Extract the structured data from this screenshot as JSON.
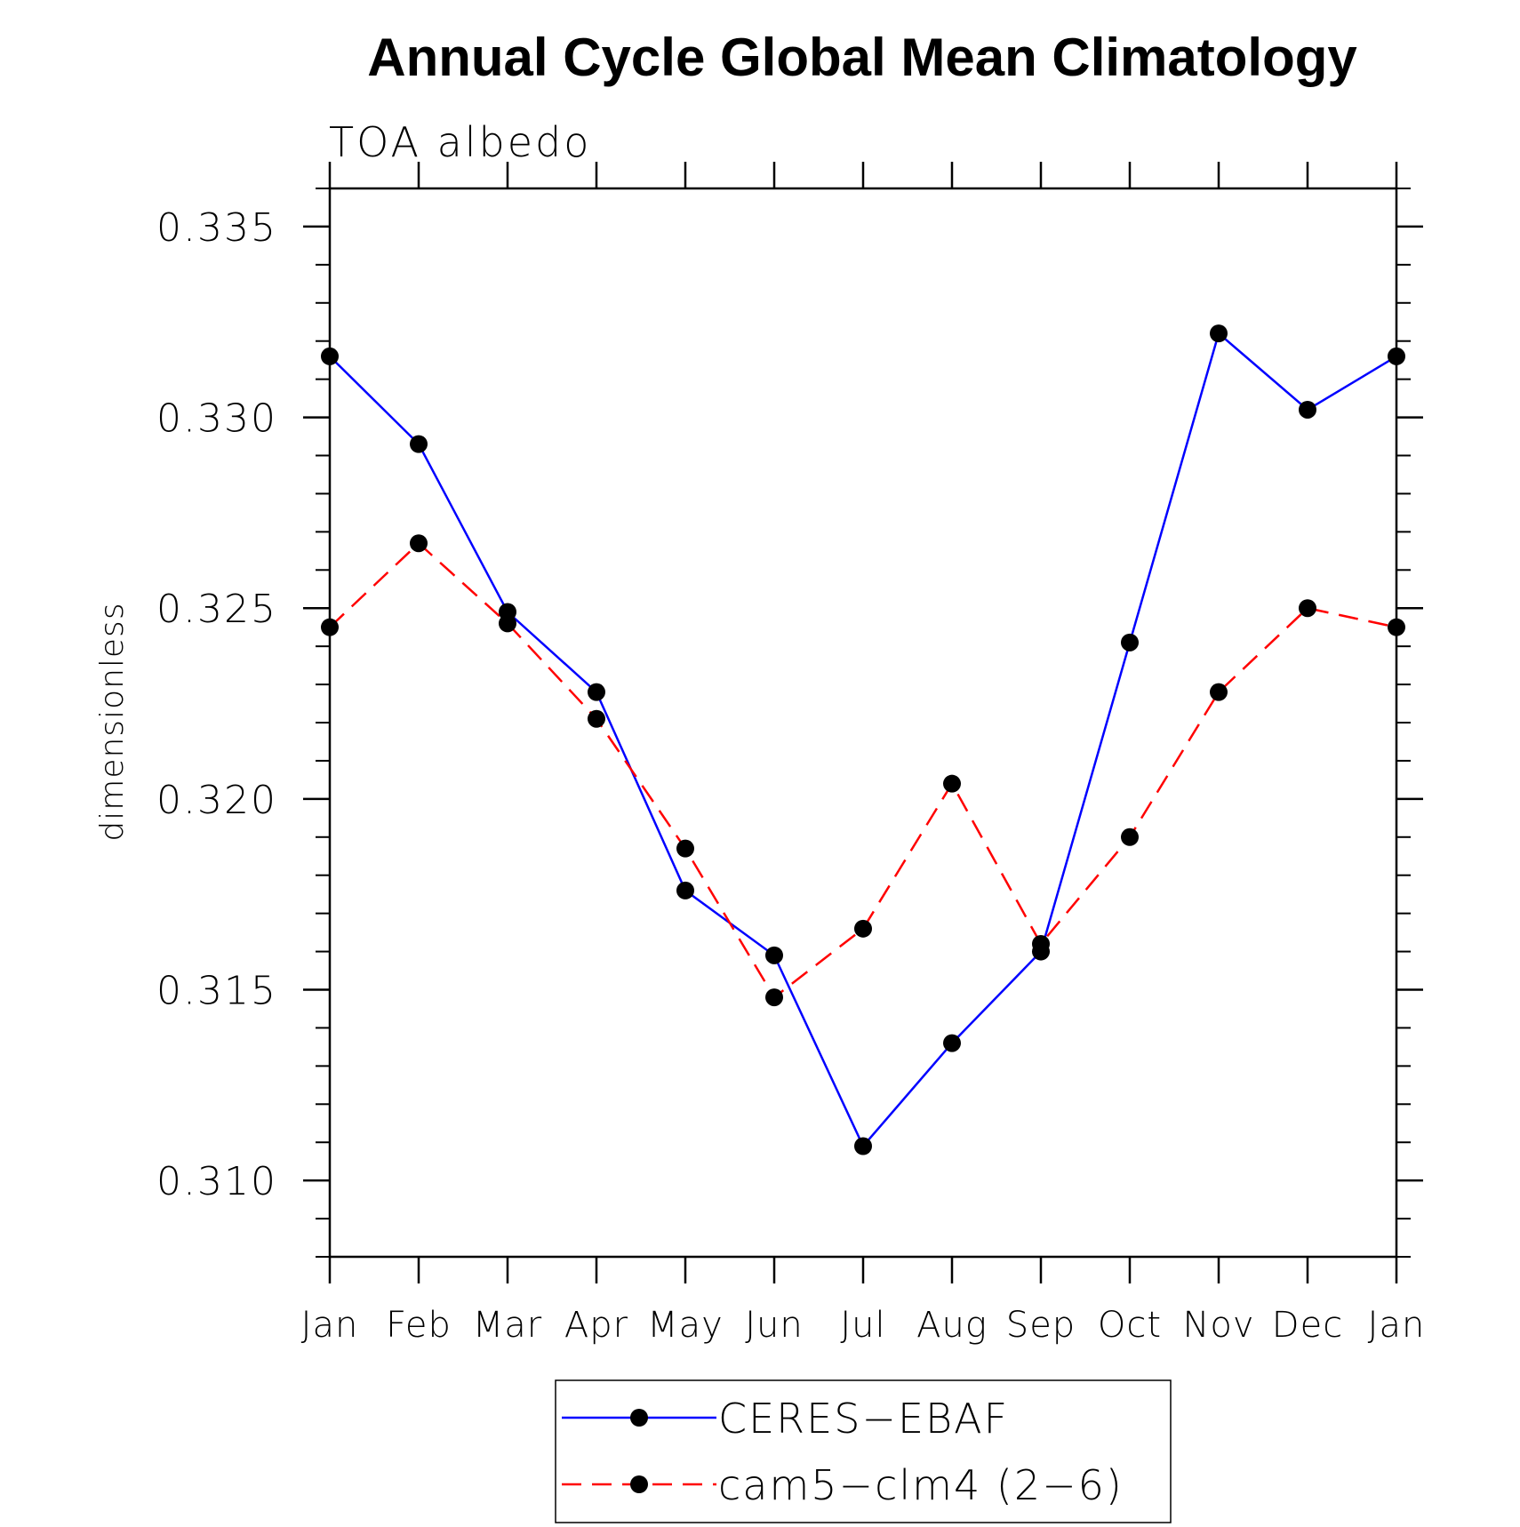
{
  "chart_data": {
    "type": "line",
    "title": "Annual Cycle Global Mean Climatology",
    "subtitle": "TOA albedo",
    "xlabel": "",
    "ylabel": "dimensionless",
    "categories": [
      "Jan",
      "Feb",
      "Mar",
      "Apr",
      "May",
      "Jun",
      "Jul",
      "Aug",
      "Sep",
      "Oct",
      "Nov",
      "Dec",
      "Jan"
    ],
    "ylim": [
      0.308,
      0.336
    ],
    "y_major_ticks": [
      0.31,
      0.315,
      0.32,
      0.325,
      0.33,
      0.335
    ],
    "y_tick_labels": [
      "0.310",
      "0.315",
      "0.320",
      "0.325",
      "0.330",
      "0.335"
    ],
    "y_minor_step": 0.001,
    "grid": false,
    "legend_position": "bottom-center",
    "series": [
      {
        "name": "CERES−EBAF",
        "color": "#0000ff",
        "line_style": "solid",
        "marker_color": "#000000",
        "values": [
          0.3316,
          0.3293,
          0.3249,
          0.3228,
          0.3176,
          0.3159,
          0.3109,
          0.3136,
          0.316,
          0.3241,
          0.3322,
          0.3302,
          0.3316
        ]
      },
      {
        "name": "cam5−clm4 (2−6)",
        "color": "#ff0000",
        "line_style": "dashed",
        "marker_color": "#000000",
        "values": [
          0.3245,
          0.3267,
          0.3246,
          0.3221,
          0.3187,
          0.3148,
          0.3166,
          0.3204,
          0.3162,
          0.319,
          0.3228,
          0.325,
          0.3245
        ]
      }
    ]
  }
}
